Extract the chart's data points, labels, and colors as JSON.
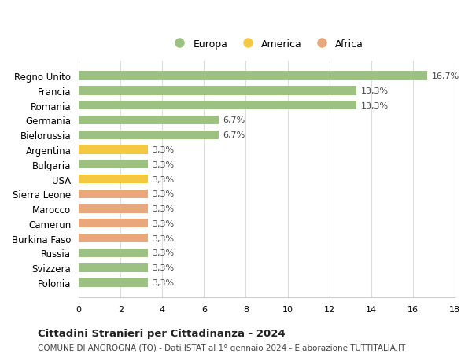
{
  "countries": [
    "Polonia",
    "Svizzera",
    "Russia",
    "Burkina Faso",
    "Camerun",
    "Marocco",
    "Sierra Leone",
    "USA",
    "Bulgaria",
    "Argentina",
    "Bielorussia",
    "Germania",
    "Romania",
    "Francia",
    "Regno Unito"
  ],
  "values": [
    3.3,
    3.3,
    3.3,
    3.3,
    3.3,
    3.3,
    3.3,
    3.3,
    3.3,
    3.3,
    6.7,
    6.7,
    13.3,
    13.3,
    16.7
  ],
  "labels": [
    "3,3%",
    "3,3%",
    "3,3%",
    "3,3%",
    "3,3%",
    "3,3%",
    "3,3%",
    "3,3%",
    "3,3%",
    "3,3%",
    "6,7%",
    "6,7%",
    "13,3%",
    "13,3%",
    "16,7%"
  ],
  "continents": [
    "Europa",
    "Europa",
    "Europa",
    "Africa",
    "Africa",
    "Africa",
    "Africa",
    "America",
    "Europa",
    "America",
    "Europa",
    "Europa",
    "Europa",
    "Europa",
    "Europa"
  ],
  "colors": {
    "Europa": "#9dc183",
    "America": "#f5c842",
    "Africa": "#e8a87c"
  },
  "legend_order": [
    "Europa",
    "America",
    "Africa"
  ],
  "legend_colors": {
    "Europa": "#9dc183",
    "America": "#f5c842",
    "Africa": "#e8a87c"
  },
  "xlim": [
    0,
    18
  ],
  "xticks": [
    0,
    2,
    4,
    6,
    8,
    10,
    12,
    14,
    16,
    18
  ],
  "title": "Cittadini Stranieri per Cittadinanza - 2024",
  "subtitle": "COMUNE DI ANGROGNA (TO) - Dati ISTAT al 1° gennaio 2024 - Elaborazione TUTTITALIA.IT",
  "background_color": "#ffffff",
  "grid_color": "#dddddd",
  "bar_height": 0.6
}
